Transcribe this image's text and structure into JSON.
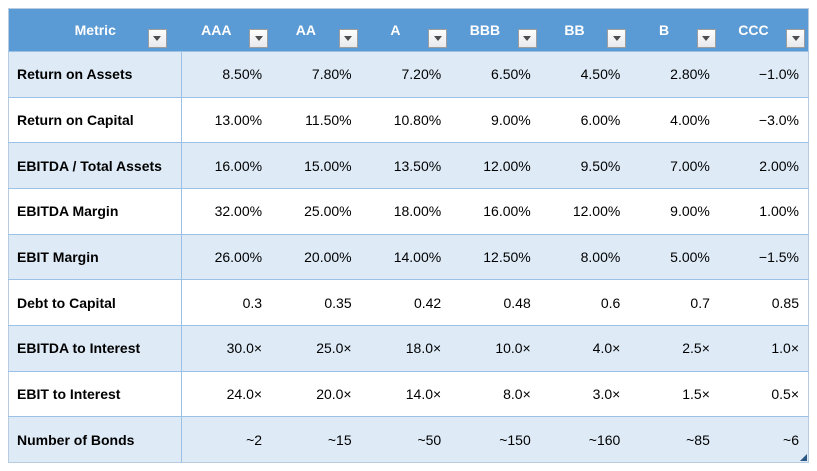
{
  "table": {
    "columns": [
      {
        "label": "Metric"
      },
      {
        "label": "AAA"
      },
      {
        "label": "AA"
      },
      {
        "label": "A"
      },
      {
        "label": "BBB"
      },
      {
        "label": "BB"
      },
      {
        "label": "B"
      },
      {
        "label": "CCC"
      }
    ],
    "rows": [
      {
        "metric": "Return on Assets",
        "values": [
          "8.50%",
          "7.80%",
          "7.20%",
          "6.50%",
          "4.50%",
          "2.80%",
          "−1.0%"
        ]
      },
      {
        "metric": "Return on Capital",
        "values": [
          "13.00%",
          "11.50%",
          "10.80%",
          "9.00%",
          "6.00%",
          "4.00%",
          "−3.0%"
        ]
      },
      {
        "metric": "EBITDA / Total Assets",
        "values": [
          "16.00%",
          "15.00%",
          "13.50%",
          "12.00%",
          "9.50%",
          "7.00%",
          "2.00%"
        ]
      },
      {
        "metric": "EBITDA Margin",
        "values": [
          "32.00%",
          "25.00%",
          "18.00%",
          "16.00%",
          "12.00%",
          "9.00%",
          "1.00%"
        ]
      },
      {
        "metric": "EBIT Margin",
        "values": [
          "26.00%",
          "20.00%",
          "14.00%",
          "12.50%",
          "8.00%",
          "5.00%",
          "−1.5%"
        ]
      },
      {
        "metric": "Debt to Capital",
        "values": [
          "0.3",
          "0.35",
          "0.42",
          "0.48",
          "0.6",
          "0.7",
          "0.85"
        ]
      },
      {
        "metric": "EBITDA to Interest",
        "values": [
          "30.0×",
          "25.0×",
          "18.0×",
          "10.0×",
          "4.0×",
          "2.5×",
          "1.0×"
        ]
      },
      {
        "metric": "EBIT to Interest",
        "values": [
          "24.0×",
          "20.0×",
          "14.0×",
          "8.0×",
          "3.0×",
          "1.5×",
          "0.5×"
        ]
      },
      {
        "metric": "Number of Bonds",
        "values": [
          "~2",
          "~15",
          "~50",
          "~150",
          "~160",
          "~85",
          "~6"
        ]
      }
    ]
  },
  "colors": {
    "header_bg": "#5B9BD5",
    "header_text": "#FFFFFF",
    "band_bg": "#DEEBF7",
    "row_bg": "#FFFFFF",
    "grid": "#9BC2E6",
    "outer": "#B7CCE0",
    "body_text": "#000000",
    "handle": "#2A5783"
  },
  "icons": {
    "filter_dropdown": "chevron-down"
  }
}
